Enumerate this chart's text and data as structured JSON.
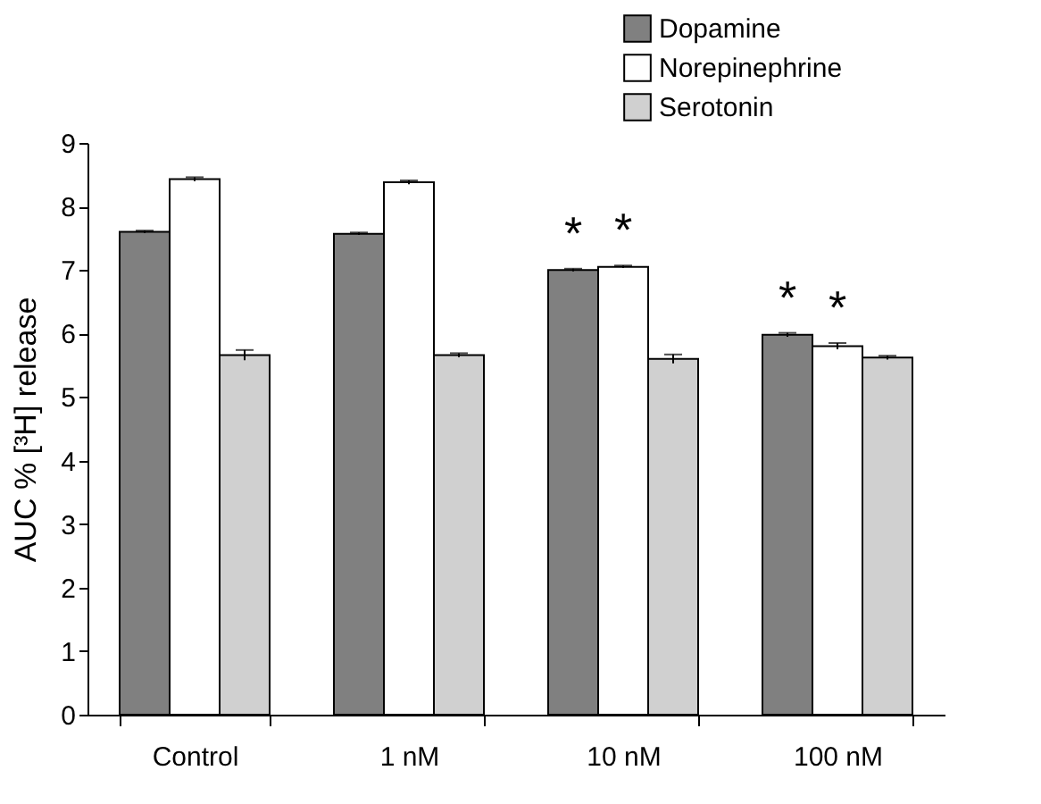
{
  "chart_data": {
    "type": "bar",
    "ylabel": "AUC % [³H] release",
    "categories": [
      "Control",
      "1 nM",
      "10 nM",
      "100 nM"
    ],
    "series": [
      {
        "name": "Dopamine",
        "color": "#808080",
        "values": [
          7.6,
          7.57,
          7.0,
          5.98
        ],
        "errors": [
          0.02,
          0.02,
          0.02,
          0.03
        ],
        "value_labels": [
          null,
          null,
          "*",
          "*"
        ]
      },
      {
        "name": "Norepinephrine",
        "color": "#ffffff",
        "values": [
          8.43,
          8.38,
          7.05,
          5.8
        ],
        "errors": [
          0.03,
          0.03,
          0.02,
          0.05
        ],
        "value_labels": [
          null,
          null,
          "*",
          "*"
        ]
      },
      {
        "name": "Serotonin",
        "color": "#d0d0d0",
        "values": [
          5.66,
          5.66,
          5.6,
          5.62
        ],
        "errors": [
          0.08,
          0.03,
          0.07,
          0.03
        ]
      }
    ],
    "ylim": [
      0,
      9
    ],
    "yticks": [
      0,
      1,
      2,
      3,
      4,
      5,
      6,
      7,
      8,
      9
    ],
    "legend": "top right",
    "grid": false
  }
}
